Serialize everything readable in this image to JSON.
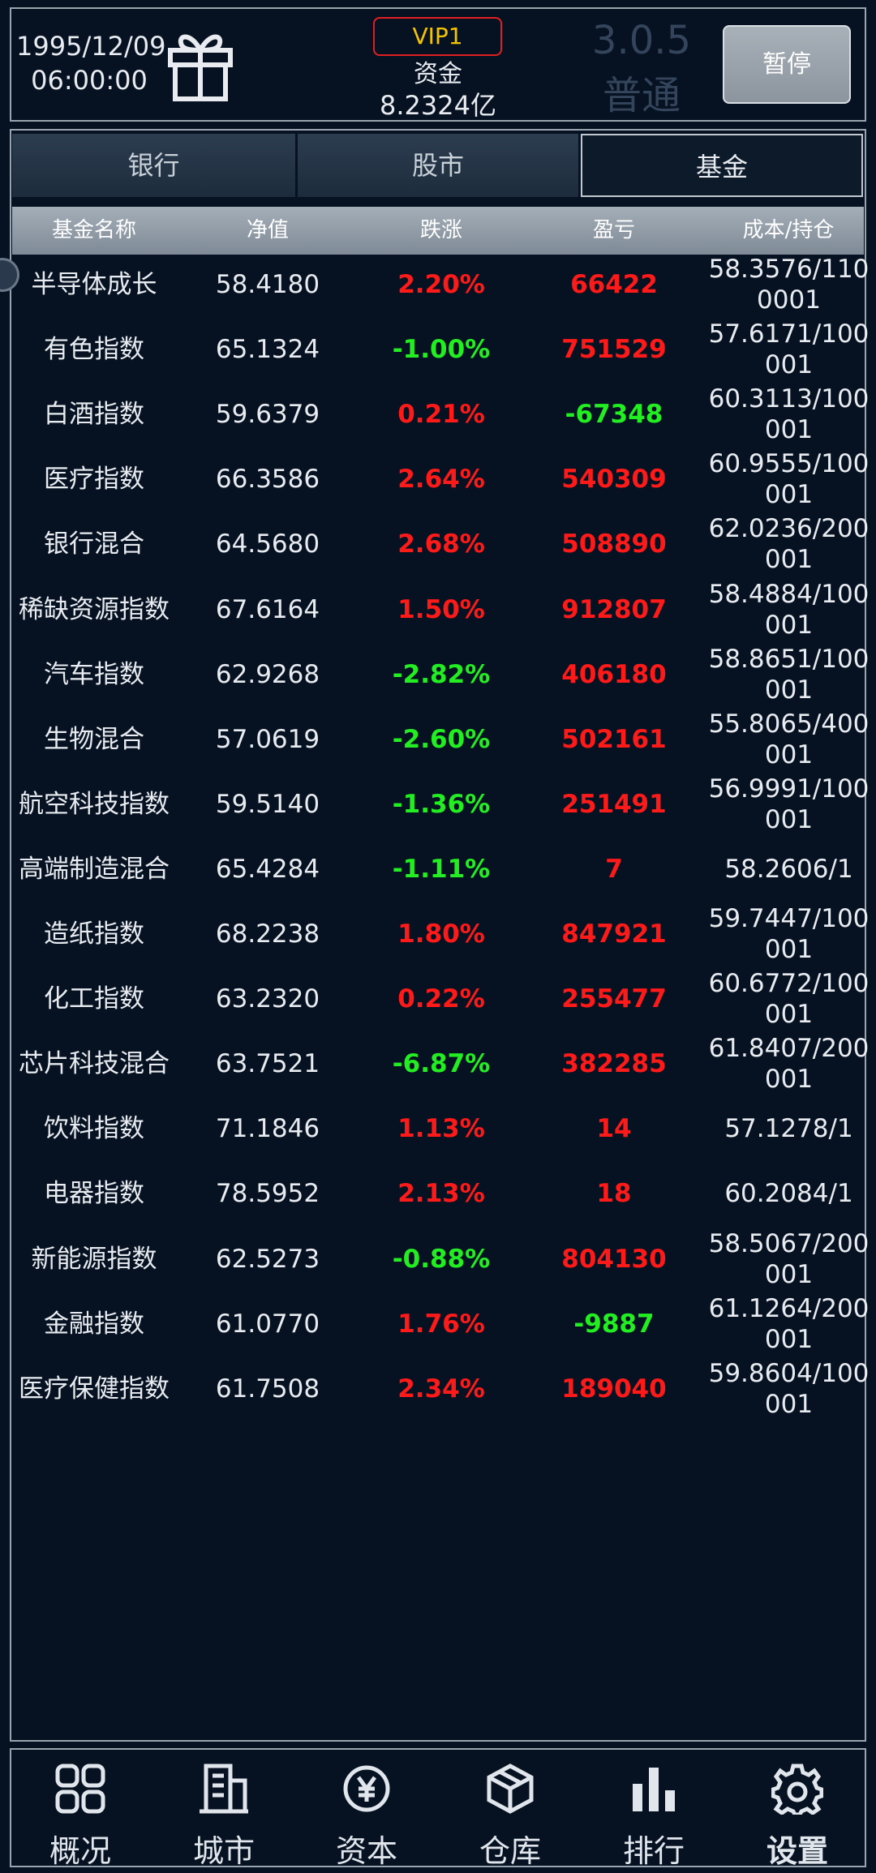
{
  "header": {
    "date": "1995/12/09",
    "time": "06:00:00",
    "vip": "VIP1",
    "funds_label": "资金",
    "funds": "8.2324亿",
    "version": "3.0.5",
    "mode": "普通",
    "pause": "暂停"
  },
  "tabs": {
    "items": [
      "银行",
      "股市",
      "基金"
    ],
    "active": 2
  },
  "table": {
    "columns": [
      "基金名称",
      "净值",
      "跌涨",
      "盈亏",
      "成本/持仓"
    ],
    "rows": [
      [
        "半导体成长",
        "58.4180",
        "2.20%",
        "66422",
        "58.3576/1100001"
      ],
      [
        "有色指数",
        "65.1324",
        "-1.00%",
        "751529",
        "57.6171/100001"
      ],
      [
        "白酒指数",
        "59.6379",
        "0.21%",
        "-67348",
        "60.3113/100001"
      ],
      [
        "医疗指数",
        "66.3586",
        "2.64%",
        "540309",
        "60.9555/100001"
      ],
      [
        "银行混合",
        "64.5680",
        "2.68%",
        "508890",
        "62.0236/200001"
      ],
      [
        "稀缺资源指数",
        "67.6164",
        "1.50%",
        "912807",
        "58.4884/100001"
      ],
      [
        "汽车指数",
        "62.9268",
        "-2.82%",
        "406180",
        "58.8651/100001"
      ],
      [
        "生物混合",
        "57.0619",
        "-2.60%",
        "502161",
        "55.8065/400001"
      ],
      [
        "航空科技指数",
        "59.5140",
        "-1.36%",
        "251491",
        "56.9991/100001"
      ],
      [
        "高端制造混合",
        "65.4284",
        "-1.11%",
        "7",
        "58.2606/1"
      ],
      [
        "造纸指数",
        "68.2238",
        "1.80%",
        "847921",
        "59.7447/100001"
      ],
      [
        "化工指数",
        "63.2320",
        "0.22%",
        "255477",
        "60.6772/100001"
      ],
      [
        "芯片科技混合",
        "63.7521",
        "-6.87%",
        "382285",
        "61.8407/200001"
      ],
      [
        "饮料指数",
        "71.1846",
        "1.13%",
        "14",
        "57.1278/1"
      ],
      [
        "电器指数",
        "78.5952",
        "2.13%",
        "18",
        "60.2084/1"
      ],
      [
        "新能源指数",
        "62.5273",
        "-0.88%",
        "804130",
        "58.5067/200001"
      ],
      [
        "金融指数",
        "61.0770",
        "1.76%",
        "-9887",
        "61.1264/200001"
      ],
      [
        "医疗保健指数",
        "61.7508",
        "2.34%",
        "189040",
        "59.8604/100001"
      ]
    ]
  },
  "nav": {
    "items": [
      "概况",
      "城市",
      "资本",
      "仓库",
      "排行",
      "设置"
    ],
    "active": 5
  }
}
